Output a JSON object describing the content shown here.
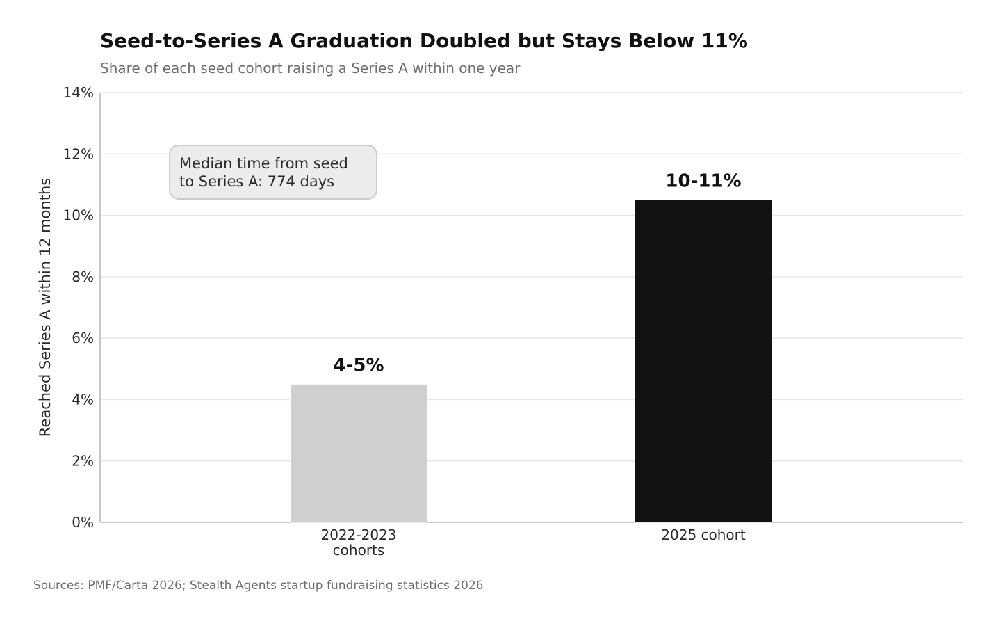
{
  "chart_data": {
    "type": "bar",
    "title": "Seed-to-Series A Graduation Doubled but Stays Below 11%",
    "subtitle": "Share of each seed cohort raising a Series A within one year",
    "ylabel": "Reached Series A within 12 months",
    "xlabel": "",
    "ylim": [
      0,
      14
    ],
    "yticks": [
      0,
      2,
      4,
      6,
      8,
      10,
      12,
      14
    ],
    "ytick_labels": [
      "0%",
      "2%",
      "4%",
      "6%",
      "8%",
      "10%",
      "12%",
      "14%"
    ],
    "grid": true,
    "categories": [
      [
        "2022-2023",
        "cohorts"
      ],
      [
        "2025 cohort"
      ]
    ],
    "values": [
      4.5,
      10.5
    ],
    "bar_labels": [
      "4-5%",
      "10-11%"
    ],
    "bar_colors": [
      "#cfcfcf",
      "#121212"
    ],
    "annotation": [
      "Median time from seed",
      "to Series A: 774 days"
    ],
    "source": "Sources: PMF/Carta 2026; Stealth Agents startup fundraising statistics 2026"
  }
}
